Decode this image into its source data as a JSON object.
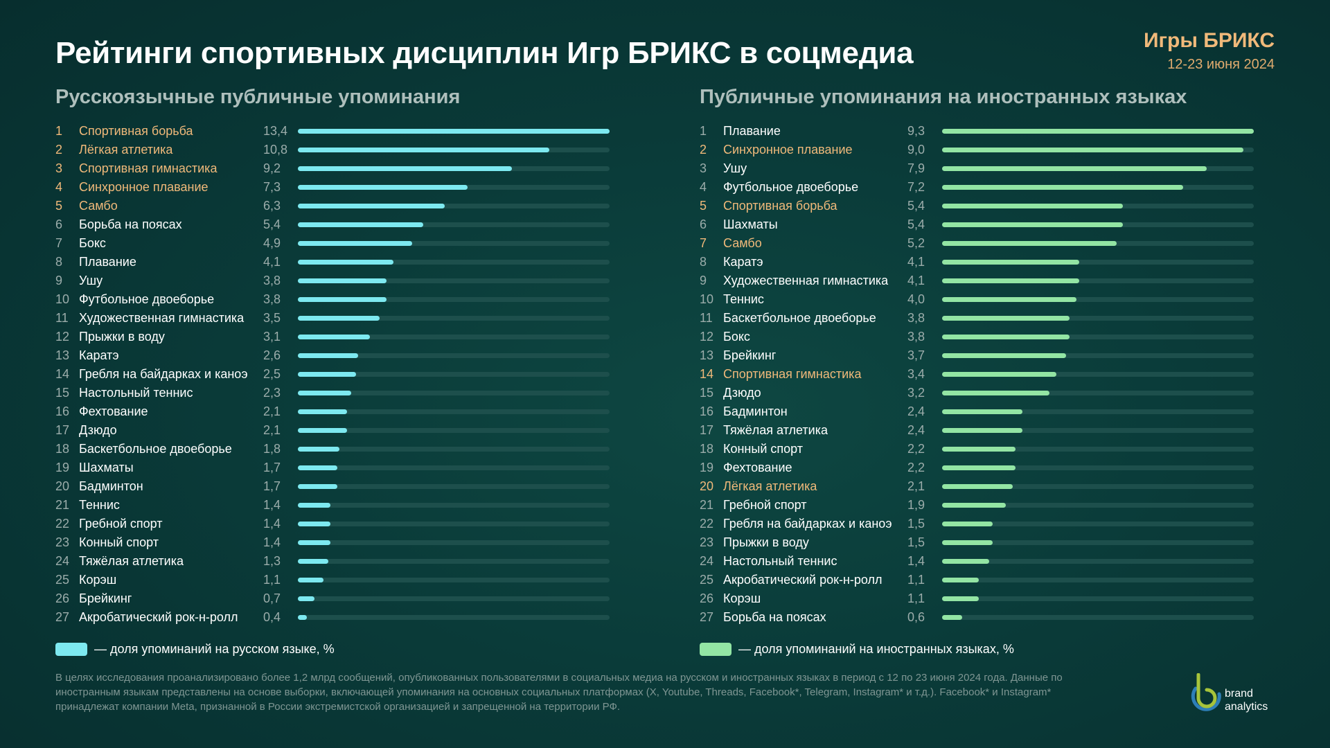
{
  "header": {
    "title": "Рейтинги спортивных дисциплин Игр БРИКС в соцмедиа",
    "event_name": "Игры БРИКС",
    "event_dates": "12-23 июня 2024"
  },
  "colors": {
    "russian_bar": "#7de9f0",
    "foreign_bar": "#93e5a4",
    "highlight_text": "#f0b97a",
    "background": "#0a3b39"
  },
  "chart_data": [
    {
      "type": "bar",
      "orientation": "horizontal",
      "title": "Русскоязычные публичные упоминания",
      "xlim": [
        0,
        13.4
      ],
      "legend": "— доля упоминаний на русском языке, %",
      "rows": [
        {
          "rank": "1",
          "name": "Спортивная борьба",
          "value": 13.4,
          "label": "13,4",
          "highlight": true
        },
        {
          "rank": "2",
          "name": "Лёгкая атлетика",
          "value": 10.8,
          "label": "10,8",
          "highlight": true
        },
        {
          "rank": "3",
          "name": "Спортивная гимнастика",
          "value": 9.2,
          "label": "9,2",
          "highlight": true
        },
        {
          "rank": "4",
          "name": "Синхронное плавание",
          "value": 7.3,
          "label": "7,3",
          "highlight": true
        },
        {
          "rank": "5",
          "name": "Самбо",
          "value": 6.3,
          "label": "6,3",
          "highlight": true
        },
        {
          "rank": "6",
          "name": "Борьба на поясах",
          "value": 5.4,
          "label": "5,4",
          "highlight": false
        },
        {
          "rank": "7",
          "name": "Бокс",
          "value": 4.9,
          "label": "4,9",
          "highlight": false
        },
        {
          "rank": "8",
          "name": "Плавание",
          "value": 4.1,
          "label": "4,1",
          "highlight": false
        },
        {
          "rank": "9",
          "name": "Ушу",
          "value": 3.8,
          "label": "3,8",
          "highlight": false
        },
        {
          "rank": "10",
          "name": "Футбольное двоеборье",
          "value": 3.8,
          "label": "3,8",
          "highlight": false
        },
        {
          "rank": "11",
          "name": "Художественная гимнастика",
          "value": 3.5,
          "label": "3,5",
          "highlight": false
        },
        {
          "rank": "12",
          "name": "Прыжки в воду",
          "value": 3.1,
          "label": "3,1",
          "highlight": false
        },
        {
          "rank": "13",
          "name": "Каратэ",
          "value": 2.6,
          "label": "2,6",
          "highlight": false
        },
        {
          "rank": "14",
          "name": "Гребля на байдарках и каноэ",
          "value": 2.5,
          "label": "2,5",
          "highlight": false
        },
        {
          "rank": "15",
          "name": "Настольный теннис",
          "value": 2.3,
          "label": "2,3",
          "highlight": false
        },
        {
          "rank": "16",
          "name": "Фехтование",
          "value": 2.1,
          "label": "2,1",
          "highlight": false
        },
        {
          "rank": "17",
          "name": "Дзюдо",
          "value": 2.1,
          "label": "2,1",
          "highlight": false
        },
        {
          "rank": "18",
          "name": "Баскетбольное двоеборье",
          "value": 1.8,
          "label": "1,8",
          "highlight": false
        },
        {
          "rank": "19",
          "name": "Шахматы",
          "value": 1.7,
          "label": "1,7",
          "highlight": false
        },
        {
          "rank": "20",
          "name": "Бадминтон",
          "value": 1.7,
          "label": "1,7",
          "highlight": false
        },
        {
          "rank": "21",
          "name": "Теннис",
          "value": 1.4,
          "label": "1,4",
          "highlight": false
        },
        {
          "rank": "22",
          "name": "Гребной спорт",
          "value": 1.4,
          "label": "1,4",
          "highlight": false
        },
        {
          "rank": "23",
          "name": "Конный спорт",
          "value": 1.4,
          "label": "1,4",
          "highlight": false
        },
        {
          "rank": "24",
          "name": "Тяжёлая атлетика",
          "value": 1.3,
          "label": "1,3",
          "highlight": false
        },
        {
          "rank": "25",
          "name": "Корэш",
          "value": 1.1,
          "label": "1,1",
          "highlight": false
        },
        {
          "rank": "26",
          "name": "Брейкинг",
          "value": 0.7,
          "label": "0,7",
          "highlight": false
        },
        {
          "rank": "27",
          "name": "Акробатический рок-н-ролл",
          "value": 0.4,
          "label": "0,4",
          "highlight": false
        }
      ]
    },
    {
      "type": "bar",
      "orientation": "horizontal",
      "title": "Публичные упоминания на иностранных языках",
      "xlim": [
        0,
        9.3
      ],
      "legend": "— доля упоминаний на иностранных языках, %",
      "rows": [
        {
          "rank": "1",
          "name": "Плавание",
          "value": 9.3,
          "label": "9,3",
          "highlight": false
        },
        {
          "rank": "2",
          "name": "Синхронное плавание",
          "value": 9.0,
          "label": "9,0",
          "highlight": true
        },
        {
          "rank": "3",
          "name": "Ушу",
          "value": 7.9,
          "label": "7,9",
          "highlight": false
        },
        {
          "rank": "4",
          "name": "Футбольное двоеборье",
          "value": 7.2,
          "label": "7,2",
          "highlight": false
        },
        {
          "rank": "5",
          "name": "Спортивная борьба",
          "value": 5.4,
          "label": "5,4",
          "highlight": true
        },
        {
          "rank": "6",
          "name": "Шахматы",
          "value": 5.4,
          "label": "5,4",
          "highlight": false
        },
        {
          "rank": "7",
          "name": "Самбо",
          "value": 5.2,
          "label": "5,2",
          "highlight": true
        },
        {
          "rank": "8",
          "name": "Каратэ",
          "value": 4.1,
          "label": "4,1",
          "highlight": false
        },
        {
          "rank": "9",
          "name": "Художественная гимнастика",
          "value": 4.1,
          "label": "4,1",
          "highlight": false
        },
        {
          "rank": "10",
          "name": "Теннис",
          "value": 4.0,
          "label": "4,0",
          "highlight": false
        },
        {
          "rank": "11",
          "name": "Баскетбольное двоеборье",
          "value": 3.8,
          "label": "3,8",
          "highlight": false
        },
        {
          "rank": "12",
          "name": "Бокс",
          "value": 3.8,
          "label": "3,8",
          "highlight": false
        },
        {
          "rank": "13",
          "name": "Брейкинг",
          "value": 3.7,
          "label": "3,7",
          "highlight": false
        },
        {
          "rank": "14",
          "name": "Спортивная гимнастика",
          "value": 3.4,
          "label": "3,4",
          "highlight": true
        },
        {
          "rank": "15",
          "name": "Дзюдо",
          "value": 3.2,
          "label": "3,2",
          "highlight": false
        },
        {
          "rank": "16",
          "name": "Бадминтон",
          "value": 2.4,
          "label": "2,4",
          "highlight": false
        },
        {
          "rank": "17",
          "name": "Тяжёлая атлетика",
          "value": 2.4,
          "label": "2,4",
          "highlight": false
        },
        {
          "rank": "18",
          "name": "Конный спорт",
          "value": 2.2,
          "label": "2,2",
          "highlight": false
        },
        {
          "rank": "19",
          "name": "Фехтование",
          "value": 2.2,
          "label": "2,2",
          "highlight": false
        },
        {
          "rank": "20",
          "name": "Лёгкая атлетика",
          "value": 2.1,
          "label": "2,1",
          "highlight": true
        },
        {
          "rank": "21",
          "name": "Гребной спорт",
          "value": 1.9,
          "label": "1,9",
          "highlight": false
        },
        {
          "rank": "22",
          "name": "Гребля на байдарках и каноэ",
          "value": 1.5,
          "label": "1,5",
          "highlight": false
        },
        {
          "rank": "23",
          "name": "Прыжки в воду",
          "value": 1.5,
          "label": "1,5",
          "highlight": false
        },
        {
          "rank": "24",
          "name": "Настольный теннис",
          "value": 1.4,
          "label": "1,4",
          "highlight": false
        },
        {
          "rank": "25",
          "name": "Акробатический рок-н-ролл",
          "value": 1.1,
          "label": "1,1",
          "highlight": false
        },
        {
          "rank": "26",
          "name": "Корэш",
          "value": 1.1,
          "label": "1,1",
          "highlight": false
        },
        {
          "rank": "27",
          "name": "Борьба на поясах",
          "value": 0.6,
          "label": "0,6",
          "highlight": false
        }
      ]
    }
  ],
  "footnote": "В целях исследования проанализировано более 1,2 млрд сообщений, опубликованных пользователями в социальных медиа на русском и иностранных языках в период с 12 по 23 июня 2024 года. Данные по иностранным языкам представлены на основе выборки, включающей упоминания на основных социальных платформах (X, Youtube, Threads, Facebook*, Telegram, Instagram* и т.д.). Facebook* и Instagram* принадлежат компании Meta, признанной в России экстремистской организацией и запрещенной на территории РФ.",
  "logo": {
    "icon": "brand-analytics-logo-icon",
    "line1": "brand",
    "line2": "analytics"
  }
}
